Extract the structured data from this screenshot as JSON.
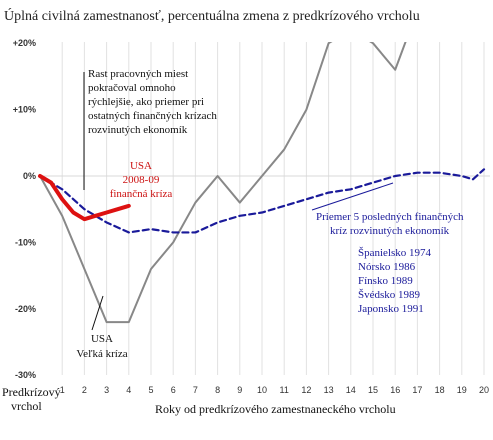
{
  "chart_data": {
    "type": "line",
    "title": "Úplná civilná zamestnanosť, percentuálna zmena z predkrízového vrcholu",
    "xlabel": "Roky od predkrízového zamestnaneckého vrcholu",
    "ylabel": "",
    "x_ticks": [
      "Predkrízový",
      "1",
      "2",
      "3",
      "4",
      "5",
      "6",
      "7",
      "8",
      "9",
      "10",
      "11",
      "12",
      "13",
      "14",
      "15",
      "16",
      "17",
      "18",
      "19",
      "20"
    ],
    "x_start_label": [
      "Predkrízový",
      "vrchol"
    ],
    "y_ticks": [
      "+20%",
      "+10%",
      "0%",
      "-10%",
      "-20%",
      "-30%"
    ],
    "ylim": [
      -30,
      20
    ],
    "xlim": [
      0,
      20
    ],
    "grid": "vertical",
    "series": [
      {
        "name": "USA Veľká kríza",
        "color": "#888888",
        "style": "solid",
        "x": [
          0,
          1,
          2,
          3,
          4,
          5,
          6,
          7,
          8,
          9,
          10,
          11,
          12,
          13,
          14,
          15,
          16,
          17
        ],
        "y": [
          0,
          -6,
          -14,
          -22,
          -22,
          -14,
          -10,
          -4,
          0,
          -4,
          0,
          4,
          10,
          20,
          22,
          20,
          16,
          25
        ]
      },
      {
        "name": "USA 2008-09 finančná kríza",
        "color": "#dd1111",
        "style": "solid",
        "x": [
          0,
          0.5,
          1,
          1.5,
          2,
          2.5,
          3,
          3.5,
          4
        ],
        "y": [
          0,
          -1,
          -3.5,
          -5.5,
          -6.5,
          -6,
          -5.5,
          -5,
          -4.5
        ]
      },
      {
        "name": "Priemer 5 posledných finančných kríz rozvinutých ekonomík",
        "color": "#1a1a9a",
        "style": "dashed",
        "x": [
          0,
          1,
          2,
          3,
          4,
          5,
          6,
          7,
          8,
          9,
          10,
          11,
          12,
          13,
          14,
          15,
          16,
          17,
          18,
          19,
          19.5,
          20
        ],
        "y": [
          0,
          -2,
          -5,
          -7,
          -8.5,
          -8,
          -8.5,
          -8.5,
          -7,
          -6,
          -5.5,
          -4.5,
          -3.5,
          -2.5,
          -2,
          -1,
          0,
          0.5,
          0.5,
          0,
          -0.5,
          1
        ]
      }
    ],
    "annotations": {
      "faster_recovery": [
        "Rast pracovných miest",
        "pokračoval omnoho",
        "rýchlejšie, ako priemer pri",
        "ostatných finančných krízach",
        "rozvinutých ekonomík"
      ],
      "usa_2008": [
        "USA",
        "2008-09",
        "finančná kríza"
      ],
      "average": [
        "Priemer 5 posledných finančných",
        "kríz rozvinutých ekonomík"
      ],
      "countries": [
        "Španielsko 1974",
        "Nórsko 1986",
        "Fínsko 1989",
        "Švédsko 1989",
        "Japonsko 1991"
      ],
      "great_depression": [
        "USA",
        "Veľká kríza"
      ]
    }
  }
}
